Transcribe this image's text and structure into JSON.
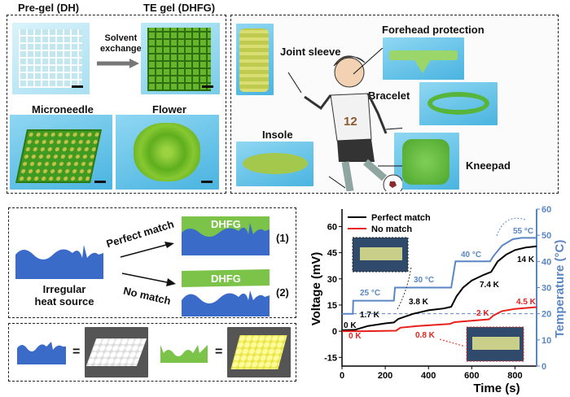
{
  "top_left": {
    "pregel_label": "Pre-gel (DH)",
    "tegel_label": "TE gel (DHFG)",
    "solvent_line1": "Solvent",
    "solvent_line2": "exchange",
    "microneedle_label": "Microneedle",
    "flower_label": "Flower"
  },
  "top_right": {
    "joint_sleeve": "Joint sleeve",
    "forehead": "Forehead protection",
    "bracelet": "Bracelet",
    "insole": "Insole",
    "kneepad": "Kneepad",
    "jersey_number": "12"
  },
  "schematic": {
    "source_line1": "Irregular",
    "source_line2": "heat source",
    "perfect_match": "Perfect match",
    "no_match": "No match",
    "gel_label": "DHFG",
    "case1": "(1)",
    "case2": "(2)",
    "equals": "="
  },
  "colors": {
    "heat_source": "#3a6bc9",
    "gel": "#7cc34a",
    "perfect": "#000000",
    "nomatch": "#e8201c",
    "temperature": "#5b86c5"
  },
  "chart_data": {
    "type": "line",
    "xlabel": "Time (s)",
    "ylabel": "Voltage (mV)",
    "y2label": "Temperature (°C)",
    "xlim": [
      0,
      900
    ],
    "ylim": [
      -20,
      70
    ],
    "y2lim": [
      0,
      60
    ],
    "xticks": [
      0,
      200,
      400,
      600,
      800
    ],
    "yticks": [
      -15,
      0,
      15,
      30,
      45,
      60
    ],
    "y2ticks": [
      0,
      10,
      20,
      30,
      40,
      50,
      60
    ],
    "legend_position": "top-left",
    "reference_line_temperature": 20,
    "series": [
      {
        "name": "Perfect match",
        "axis": "left",
        "color": "#000000",
        "x": [
          0,
          60,
          120,
          200,
          240,
          260,
          330,
          400,
          470,
          505,
          530,
          560,
          600,
          650,
          690,
          720,
          760,
          800,
          850,
          900
        ],
        "y": [
          0.5,
          0.8,
          3,
          4.5,
          5,
          7,
          10,
          12,
          13,
          14,
          20,
          25,
          29,
          32,
          34,
          40,
          44,
          46.5,
          48,
          48.7
        ]
      },
      {
        "name": "No match",
        "axis": "left",
        "color": "#e8201c",
        "x": [
          0,
          100,
          250,
          270,
          350,
          450,
          500,
          520,
          600,
          680,
          700,
          740,
          800,
          900
        ],
        "y": [
          0,
          0,
          0.3,
          2,
          3,
          3.8,
          4.2,
          5.2,
          6,
          6.8,
          9,
          11.5,
          12.8,
          13.8
        ]
      },
      {
        "axis": "right",
        "color": "#5b86c5",
        "x": [
          0,
          50,
          52,
          240,
          245,
          505,
          525,
          685,
          700,
          740,
          790,
          830,
          900
        ],
        "y": [
          20,
          20,
          25,
          25,
          30,
          30,
          40,
          40,
          42,
          46,
          48.5,
          49,
          49
        ]
      }
    ],
    "annotations": {
      "temps": [
        "25 °C",
        "30 °C",
        "40 °C",
        "55 °C"
      ],
      "black_dT": [
        "0 K",
        "1.7 K",
        "3.8 K",
        "7.4 K",
        "14 K"
      ],
      "red_dT": [
        "0 K",
        "0.8 K",
        "2 K",
        "4.5 K"
      ]
    }
  }
}
